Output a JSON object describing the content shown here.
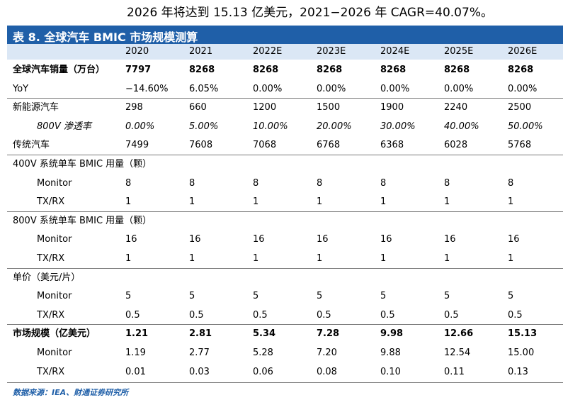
{
  "headline": "2026 年将达到 15.13 亿美元，2021−2026 年 CAGR=40.07%。",
  "table": {
    "title": "表 8. 全球汽车 BMIC 市场规模测算",
    "columns": [
      "2020",
      "2021",
      "2022E",
      "2023E",
      "2024E",
      "2025E",
      "2026E"
    ],
    "groups": [
      {
        "rows": [
          {
            "label": "全球汽车销量（万台）",
            "bold": true,
            "values": [
              "7797",
              "8268",
              "8268",
              "8268",
              "8268",
              "8268",
              "8268"
            ]
          },
          {
            "label": "YoY",
            "values": [
              "−14.60%",
              "6.05%",
              "0.00%",
              "0.00%",
              "0.00%",
              "0.00%",
              "0.00%"
            ]
          }
        ]
      },
      {
        "rows": [
          {
            "label": "新能源汽车",
            "values": [
              "298",
              "660",
              "1200",
              "1500",
              "1900",
              "2240",
              "2500"
            ]
          },
          {
            "label": "800V 渗透率",
            "italic": true,
            "values": [
              "0.00%",
              "5.00%",
              "10.00%",
              "20.00%",
              "30.00%",
              "40.00%",
              "50.00%"
            ]
          },
          {
            "label": "传统汽车",
            "values": [
              "7499",
              "7608",
              "7068",
              "6768",
              "6368",
              "6028",
              "5768"
            ]
          }
        ]
      },
      {
        "rows": [
          {
            "label": "400V 系统单车 BMIC 用量（颗）"
          },
          {
            "label": "Monitor",
            "sub": true,
            "values": [
              "8",
              "8",
              "8",
              "8",
              "8",
              "8",
              "8"
            ]
          },
          {
            "label": "TX/RX",
            "sub": true,
            "values": [
              "1",
              "1",
              "1",
              "1",
              "1",
              "1",
              "1"
            ]
          }
        ]
      },
      {
        "rows": [
          {
            "label": "800V 系统单车 BMIC 用量（颗）"
          },
          {
            "label": "Monitor",
            "sub": true,
            "values": [
              "16",
              "16",
              "16",
              "16",
              "16",
              "16",
              "16"
            ]
          },
          {
            "label": "TX/RX",
            "sub": true,
            "values": [
              "1",
              "1",
              "1",
              "1",
              "1",
              "1",
              "1"
            ]
          }
        ]
      },
      {
        "rows": [
          {
            "label": "单价（美元/片）"
          },
          {
            "label": "Monitor",
            "sub": true,
            "values": [
              "5",
              "5",
              "5",
              "5",
              "5",
              "5",
              "5"
            ]
          },
          {
            "label": "TX/RX",
            "sub": true,
            "values": [
              "0.5",
              "0.5",
              "0.5",
              "0.5",
              "0.5",
              "0.5",
              "0.5"
            ]
          }
        ]
      },
      {
        "rows": [
          {
            "label": "市场规模（亿美元）",
            "bold": true,
            "values": [
              "1.21",
              "2.81",
              "5.34",
              "7.28",
              "9.98",
              "12.66",
              "15.13"
            ]
          },
          {
            "label": "Monitor",
            "sub": true,
            "values": [
              "1.19",
              "2.77",
              "5.28",
              "7.20",
              "9.88",
              "12.54",
              "15.00"
            ]
          },
          {
            "label": "TX/RX",
            "sub": true,
            "values": [
              "0.01",
              "0.03",
              "0.06",
              "0.08",
              "0.10",
              "0.11",
              "0.13"
            ]
          }
        ]
      }
    ]
  },
  "source": "数据来源：IEA、财通证券研究所"
}
